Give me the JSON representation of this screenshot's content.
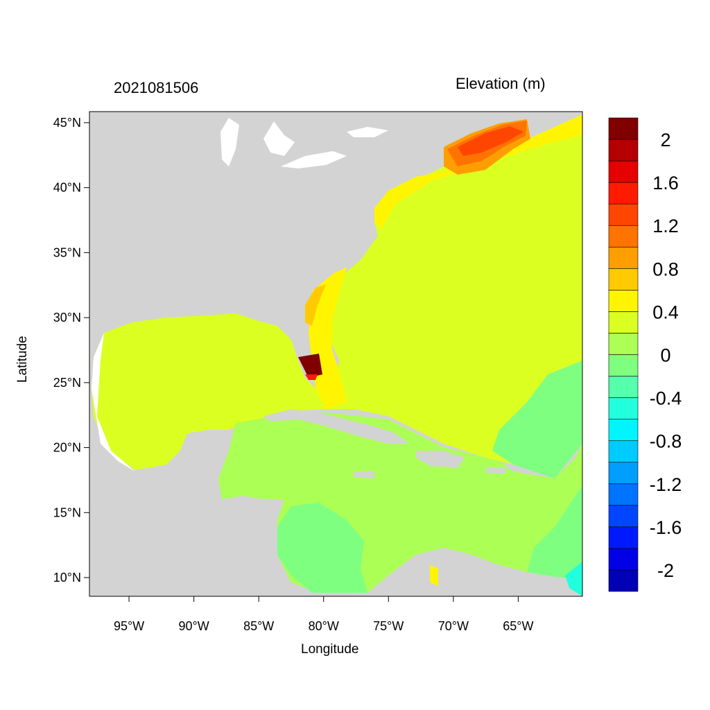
{
  "header": {
    "timestamp": "2021081506",
    "variable": "Elevation (m)"
  },
  "chart_data": {
    "type": "heatmap",
    "title": "2021081506",
    "subtitle": "Elevation (m)",
    "xlabel": "Longitude",
    "ylabel": "Latitude",
    "xlim": [
      -98.05,
      -60.05
    ],
    "ylim": [
      8.56,
      45.85
    ],
    "x_ticks": [
      {
        "value": -95,
        "label": "95°W"
      },
      {
        "value": -90,
        "label": "90°W"
      },
      {
        "value": -85,
        "label": "85°W"
      },
      {
        "value": -80,
        "label": "80°W"
      },
      {
        "value": -75,
        "label": "75°W"
      },
      {
        "value": -70,
        "label": "70°W"
      },
      {
        "value": -65,
        "label": "65°W"
      }
    ],
    "y_ticks": [
      {
        "value": 45,
        "label": "45°N"
      },
      {
        "value": 40,
        "label": "40°N"
      },
      {
        "value": 35,
        "label": "35°N"
      },
      {
        "value": 30,
        "label": "30°N"
      },
      {
        "value": 25,
        "label": "25°N"
      },
      {
        "value": 20,
        "label": "20°N"
      },
      {
        "value": 15,
        "label": "15°N"
      },
      {
        "value": 10,
        "label": "10°N"
      }
    ],
    "colorbar": {
      "levels_min": -2.0,
      "levels_max": 2.0,
      "level_step": 0.2,
      "colors": [
        "#0000B4",
        "#0000E6",
        "#001AFF",
        "#0046FF",
        "#0073FF",
        "#009EFF",
        "#00CBFF",
        "#00F5FF",
        "#22FFDC",
        "#55FFAB",
        "#7FFF80",
        "#ABFF55",
        "#DCFF22",
        "#FFF500",
        "#FFCB00",
        "#FF9E00",
        "#FF7300",
        "#FF4600",
        "#FF1A00",
        "#E60000",
        "#B40000",
        "#800000"
      ],
      "labels": [
        {
          "value": 2,
          "label": "2"
        },
        {
          "value": 1.6,
          "label": "1.6"
        },
        {
          "value": 1.2,
          "label": "1.2"
        },
        {
          "value": 0.8,
          "label": "0.8"
        },
        {
          "value": 0.4,
          "label": "0.4"
        },
        {
          "value": 0,
          "label": "0"
        },
        {
          "value": -0.4,
          "label": "-0.4"
        },
        {
          "value": -0.8,
          "label": "-0.8"
        },
        {
          "value": -1.2,
          "label": "-1.2"
        },
        {
          "value": -1.6,
          "label": "-1.6"
        },
        {
          "value": -2,
          "label": "-2"
        }
      ]
    },
    "land_color": "#D3D3D3"
  }
}
